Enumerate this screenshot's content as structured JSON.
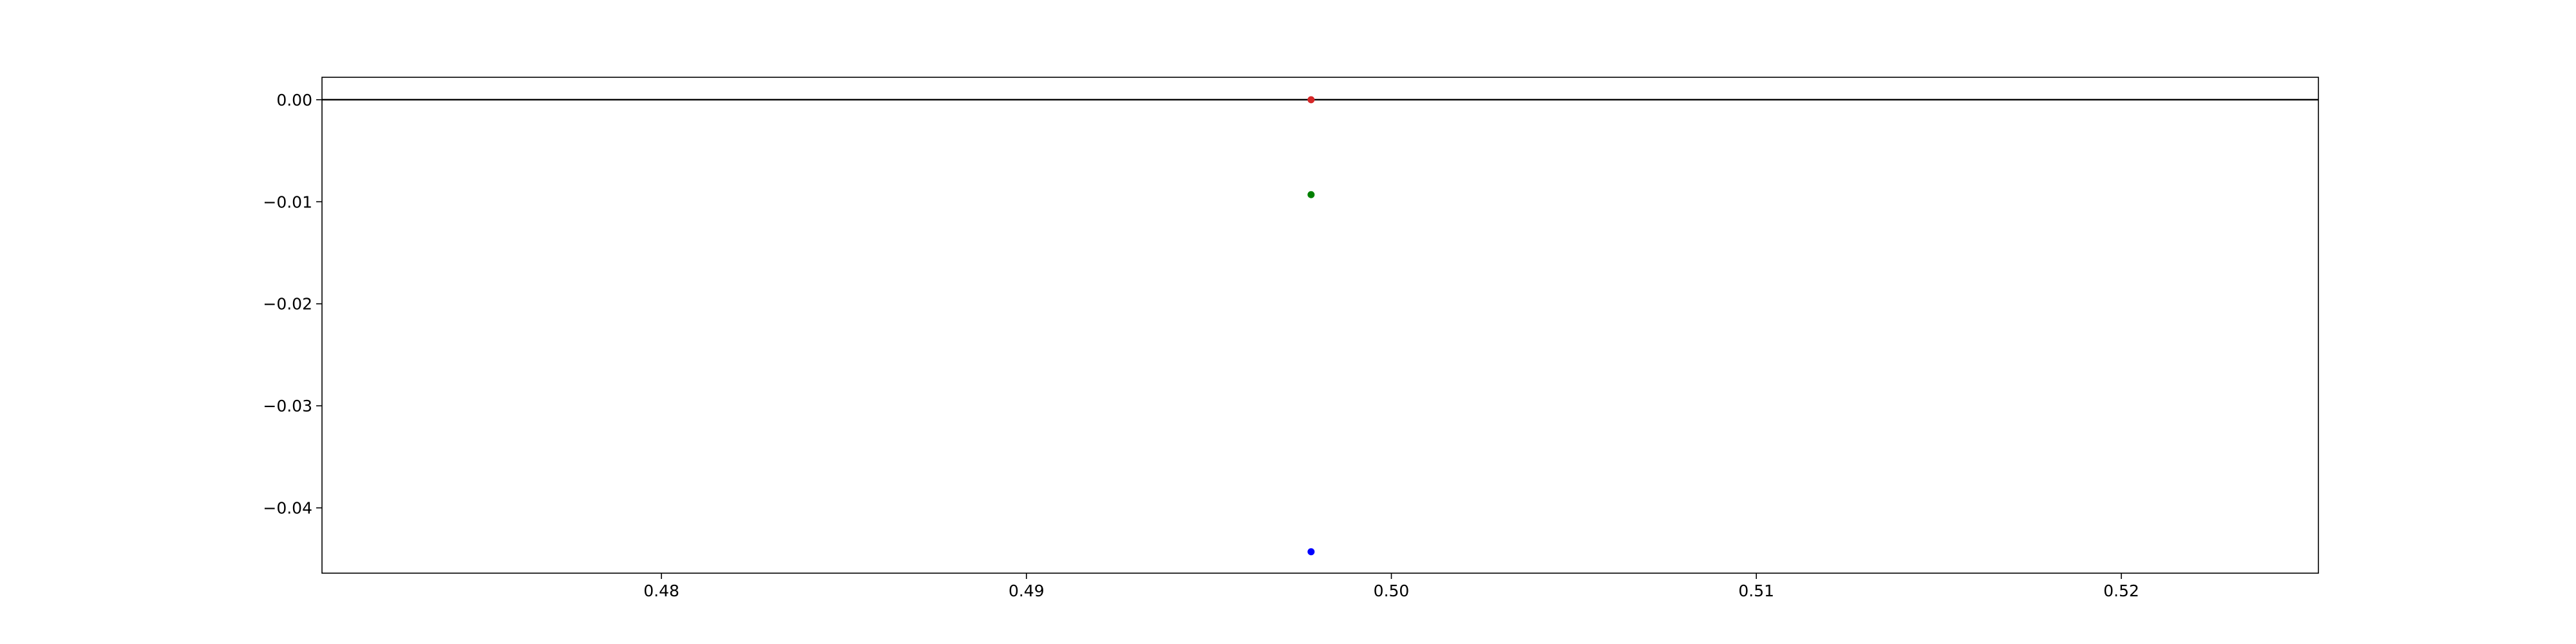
{
  "chart_data": {
    "type": "scatter",
    "title": "",
    "xlabel": "",
    "ylabel": "",
    "xlim": [
      0.4707,
      0.5254
    ],
    "ylim": [
      -0.0464,
      0.0022
    ],
    "x_ticks": [
      0.48,
      0.49,
      0.5,
      0.51,
      0.52
    ],
    "x_tick_labels": [
      "0.48",
      "0.49",
      "0.50",
      "0.51",
      "0.52"
    ],
    "y_ticks": [
      0.0,
      -0.01,
      -0.02,
      -0.03,
      -0.04
    ],
    "y_tick_labels": [
      "0.00",
      "−0.01",
      "−0.02",
      "−0.03",
      "−0.04"
    ],
    "grid": false,
    "reference_line": {
      "y": 0.0,
      "color": "#000000"
    },
    "series": [
      {
        "color": "#d62728",
        "points": [
          {
            "x": 0.4978,
            "y": 0.0
          }
        ]
      },
      {
        "color": "#008000",
        "points": [
          {
            "x": 0.4978,
            "y": -0.0093
          }
        ]
      },
      {
        "color": "#0000ff",
        "points": [
          {
            "x": 0.4978,
            "y": -0.0443
          }
        ]
      }
    ]
  }
}
